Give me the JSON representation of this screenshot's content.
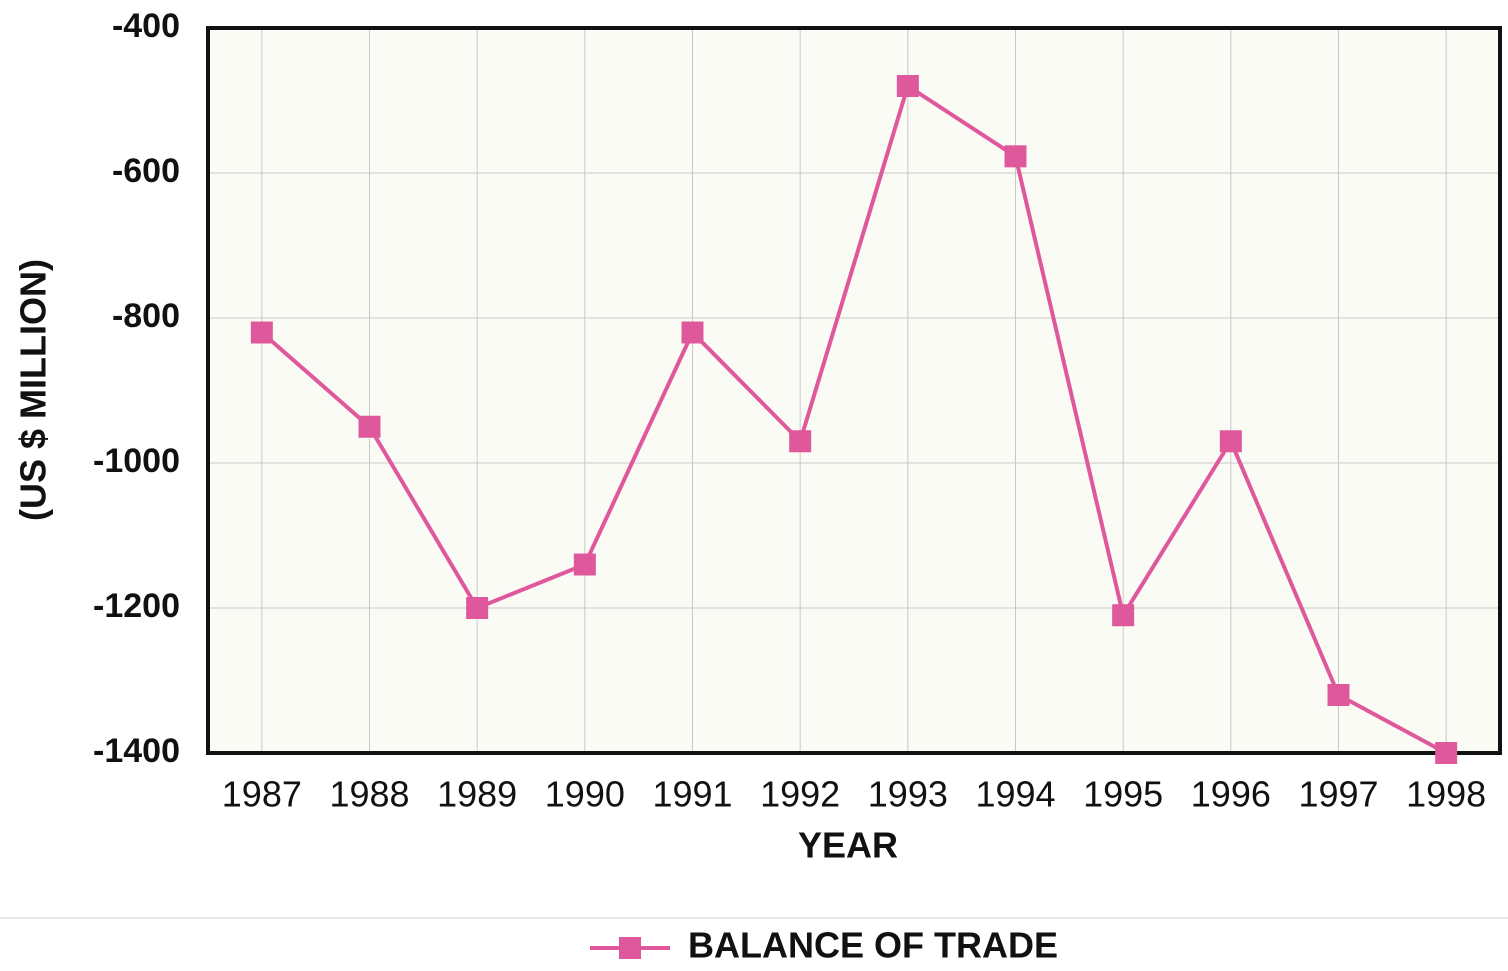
{
  "chart_data": {
    "type": "line",
    "x_label": "YEAR",
    "y_label": "(US $ MILLION)",
    "categories": [
      "1987",
      "1988",
      "1989",
      "1990",
      "1991",
      "1992",
      "1993",
      "1994",
      "1995",
      "1996",
      "1997",
      "1998"
    ],
    "series": [
      {
        "name": "BALANCE OF TRADE",
        "color": "#e0589c",
        "values": [
          -820,
          -950,
          -1200,
          -1140,
          -820,
          -970,
          -480,
          -577,
          -1210,
          -970,
          -1320,
          -1400
        ]
      }
    ],
    "ylim": [
      -1400,
      -400
    ],
    "yticks": [
      -1400,
      -1200,
      -1000,
      -800,
      -600,
      -400
    ],
    "grid": true,
    "legend": "bottom"
  }
}
